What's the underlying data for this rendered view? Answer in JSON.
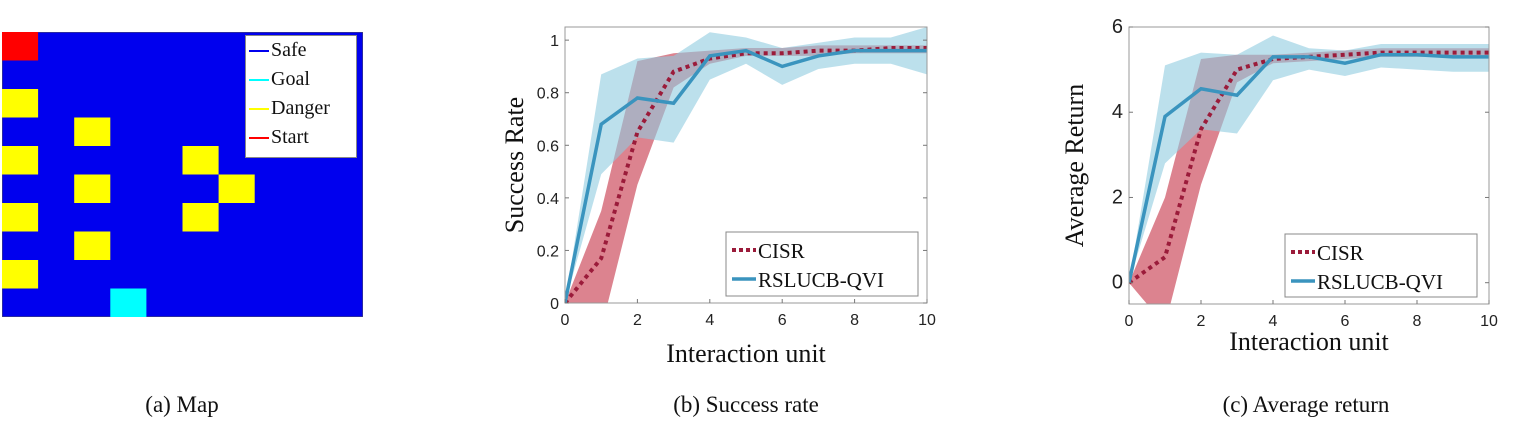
{
  "map": {
    "cols": 10,
    "rows": 10,
    "colors": {
      "safe": "#0000ee",
      "goal": "#00ffff",
      "danger": "#ffff00",
      "start": "#ff0000"
    },
    "start": [
      0,
      0
    ],
    "goal": [
      3,
      9
    ],
    "danger": [
      [
        0,
        2
      ],
      [
        0,
        4
      ],
      [
        0,
        6
      ],
      [
        0,
        8
      ],
      [
        2,
        3
      ],
      [
        2,
        5
      ],
      [
        2,
        7
      ],
      [
        5,
        4
      ],
      [
        5,
        6
      ],
      [
        6,
        5
      ]
    ],
    "legend": [
      {
        "label": "Safe",
        "key": "safe",
        "color": "#0000ee"
      },
      {
        "label": "Goal",
        "key": "goal",
        "color": "#00ffff"
      },
      {
        "label": "Danger",
        "key": "danger",
        "color": "#ffff00"
      },
      {
        "label": "Start",
        "key": "start",
        "color": "#ff0000"
      }
    ],
    "caption": "(a) Map"
  },
  "chart_data": [
    {
      "type": "line",
      "caption": "(b) Success rate",
      "xlabel": "Interaction unit",
      "ylabel": "Success Rate",
      "xlim": [
        0,
        10
      ],
      "ylim": [
        0,
        1.05
      ],
      "xticks": [
        "0",
        "2",
        "4",
        "6",
        "8",
        "10"
      ],
      "yticks": [
        "0",
        "0.2",
        "0.4",
        "0.6",
        "0.8",
        "1"
      ],
      "legend_position": "bottom-right",
      "x": [
        0,
        1,
        2,
        3,
        4,
        5,
        6,
        7,
        8,
        9,
        10
      ],
      "series": [
        {
          "name": "CISR",
          "style": "dotted",
          "color": "#9b1b3a",
          "band_color": "#d05a6a",
          "values": [
            0,
            0.17,
            0.65,
            0.88,
            0.93,
            0.95,
            0.95,
            0.96,
            0.96,
            0.97,
            0.97
          ],
          "lower": [
            0,
            -0.1,
            0.45,
            0.82,
            0.91,
            0.94,
            0.94,
            0.94,
            0.95,
            0.95,
            0.95
          ],
          "upper": [
            0,
            0.35,
            0.92,
            0.95,
            0.96,
            0.97,
            0.97,
            0.98,
            0.98,
            0.98,
            0.98
          ]
        },
        {
          "name": "RSLUCB-QVI",
          "style": "solid",
          "color": "#3a94be",
          "band_color": "#8fcbe0",
          "values": [
            0,
            0.68,
            0.78,
            0.76,
            0.94,
            0.96,
            0.9,
            0.94,
            0.96,
            0.96,
            0.96
          ],
          "lower": [
            0,
            0.49,
            0.63,
            0.61,
            0.85,
            0.91,
            0.83,
            0.89,
            0.91,
            0.91,
            0.87
          ],
          "upper": [
            0,
            0.87,
            0.93,
            0.94,
            1.03,
            1.01,
            0.97,
            0.99,
            1.01,
            1.01,
            1.05
          ]
        }
      ]
    },
    {
      "type": "line",
      "caption": "(c) Average return",
      "xlabel": "Interaction unit",
      "ylabel": "Average Return",
      "xlim": [
        0,
        10
      ],
      "ylim": [
        -0.5,
        6
      ],
      "xticks": [
        "0",
        "2",
        "4",
        "6",
        "8",
        "10"
      ],
      "yticks": [
        "0",
        "2",
        "4",
        "6"
      ],
      "legend_position": "bottom-right",
      "x": [
        0,
        1,
        2,
        3,
        4,
        5,
        6,
        7,
        8,
        9,
        10
      ],
      "series": [
        {
          "name": "CISR",
          "style": "dotted",
          "color": "#9b1b3a",
          "band_color": "#d05a6a",
          "values": [
            0,
            0.6,
            3.6,
            5.0,
            5.25,
            5.3,
            5.35,
            5.4,
            5.4,
            5.4,
            5.4
          ],
          "lower": [
            0,
            -1.0,
            2.3,
            4.7,
            5.15,
            5.2,
            5.25,
            5.3,
            5.3,
            5.3,
            5.3
          ],
          "upper": [
            0,
            2.0,
            5.25,
            5.35,
            5.35,
            5.4,
            5.45,
            5.5,
            5.5,
            5.5,
            5.5
          ]
        },
        {
          "name": "RSLUCB-QVI",
          "style": "solid",
          "color": "#3a94be",
          "band_color": "#8fcbe0",
          "values": [
            0,
            3.9,
            4.55,
            4.4,
            5.3,
            5.3,
            5.15,
            5.35,
            5.35,
            5.3,
            5.3
          ],
          "lower": [
            0,
            2.8,
            3.6,
            3.5,
            4.75,
            5.0,
            4.85,
            5.05,
            5.0,
            4.95,
            4.95
          ],
          "upper": [
            0,
            5.1,
            5.4,
            5.35,
            5.8,
            5.5,
            5.45,
            5.6,
            5.6,
            5.6,
            5.6
          ]
        }
      ]
    }
  ]
}
